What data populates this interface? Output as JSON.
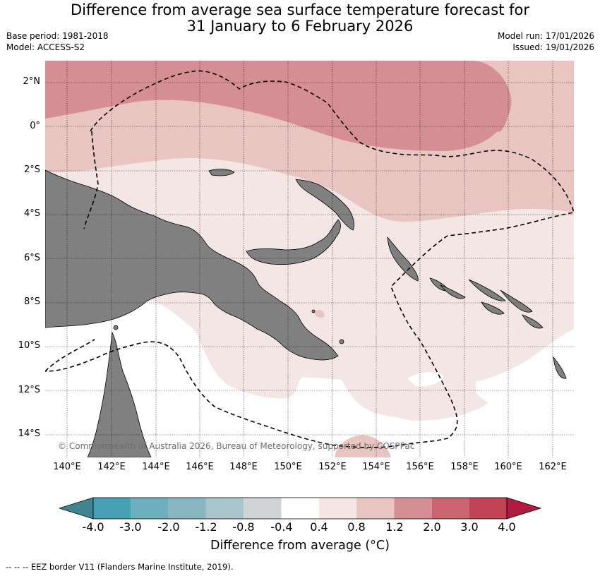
{
  "header": {
    "title_line1": "Difference from average sea surface temperature forecast for",
    "title_line2": "31 January to 6 February 2026",
    "base_period": "Base period: 1981-2018",
    "model": "Model: ACCESS-S2",
    "model_run": "Model run: 17/01/2026",
    "issued": "Issued: 19/01/2026"
  },
  "map": {
    "region": "Papua New Guinea",
    "lat_ticks": [
      "2°N",
      "0°",
      "2°S",
      "4°S",
      "6°S",
      "8°S",
      "10°S",
      "12°S",
      "14°S"
    ],
    "lon_ticks": [
      "140°E",
      "142°E",
      "144°E",
      "146°E",
      "148°E",
      "150°E",
      "152°E",
      "154°E",
      "156°E",
      "158°E",
      "160°E",
      "162°E"
    ],
    "copyright": "© Commonwealth of Australia 2026, Bureau of Meteorology, supported by COSPPac",
    "colors": {
      "land": "#808080",
      "anomaly_0_4_to_0_8": "#f4e6e4",
      "anomaly_0_8_to_1_2": "#e8c5c1",
      "anomaly_1_2_to_2_0": "#d68e95",
      "near_average": "#ffffff"
    }
  },
  "colorbar": {
    "title": "Difference from average (°C)",
    "labels": [
      "-4.0",
      "-3.0",
      "-2.0",
      "-1.2",
      "-0.8",
      "-0.4",
      "0.4",
      "0.8",
      "1.2",
      "2.0",
      "3.0",
      "4.0"
    ],
    "colors": [
      "#3f848f",
      "#48a0b4",
      "#6daebf",
      "#89b7c1",
      "#a7c5ca",
      "#d0d4d5",
      "#ffffff",
      "#f4e6e4",
      "#e8c5c1",
      "#d68e95",
      "#cb6670",
      "#c04456",
      "#b11b3f"
    ]
  },
  "footnote": "--  --  -- EEZ border V11 (Flanders Marine Institute, 2019)."
}
